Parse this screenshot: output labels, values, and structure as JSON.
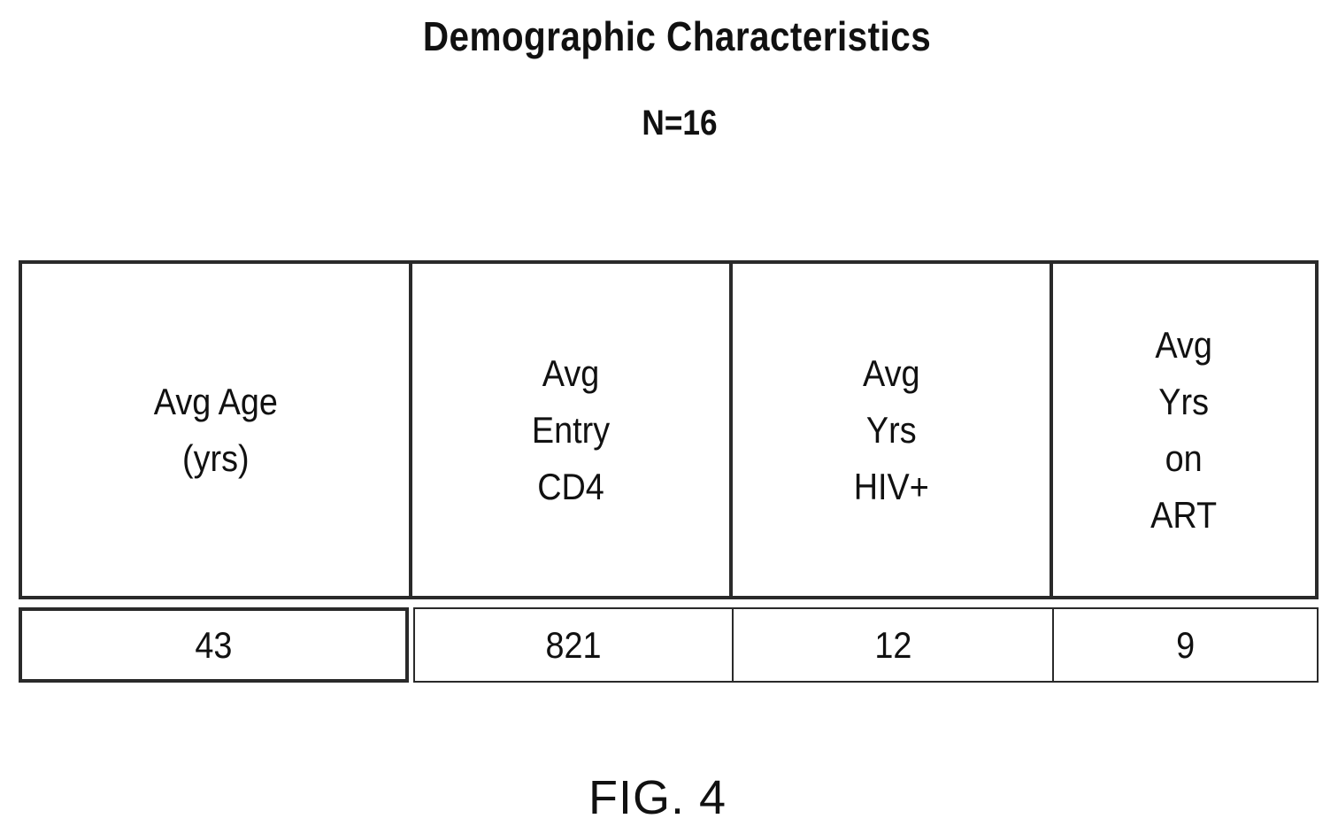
{
  "title": "Demographic Characteristics",
  "subtitle": "N=16",
  "table": {
    "headers": [
      "Avg Age\n(yrs)",
      "Avg\nEntry\nCD4",
      "Avg\nYrs\nHIV+",
      "Avg\nYrs\non\nART"
    ],
    "values": [
      "43",
      "821",
      "12",
      "9"
    ]
  },
  "figure_label": "FIG. 4"
}
